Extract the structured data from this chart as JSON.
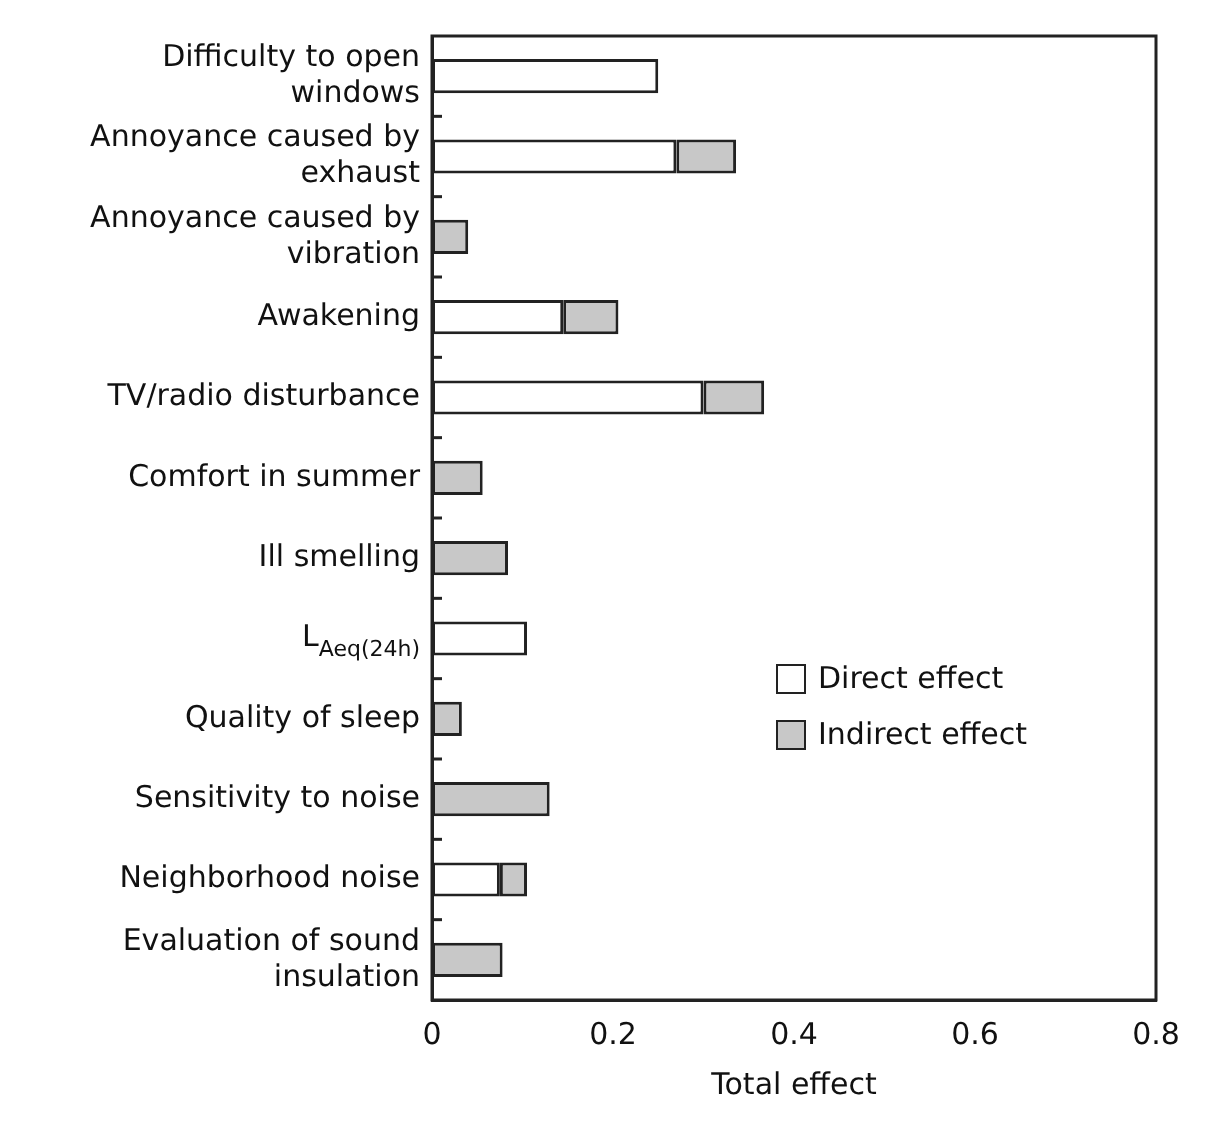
{
  "chart_data": {
    "type": "bar",
    "orientation": "horizontal",
    "stacked": true,
    "xlabel": "Total effect",
    "categories": [
      "Difficulty to open windows",
      "Annoyance caused by exhaust",
      "Annoyance caused by vibration",
      "Awakening",
      "TV/radio disturbance",
      "Comfort in summer",
      "Ill smelling",
      "L$_{Aeq(24h)}$",
      "Quality of sleep",
      "Sensitivity to noise",
      "Neighborhood noise",
      "Evaluation of sound insulation"
    ],
    "series": [
      {
        "name": "Direct effect",
        "color": "#ffffff",
        "values": [
          0.25,
          0.27,
          0,
          0.145,
          0.3,
          0,
          0,
          0.105,
          0,
          0,
          0.075,
          0
        ]
      },
      {
        "name": "Indirect effect",
        "color": "#c8c8c8",
        "values": [
          0,
          0.066,
          0.04,
          0.061,
          0.067,
          0.056,
          0.084,
          0,
          0.033,
          0.13,
          0.03,
          0.078
        ]
      }
    ],
    "xlim": [
      0,
      0.8
    ],
    "xticks": [
      0,
      0.2,
      0.4,
      0.6,
      0.8
    ],
    "grid": false,
    "legend": "bottom right"
  }
}
